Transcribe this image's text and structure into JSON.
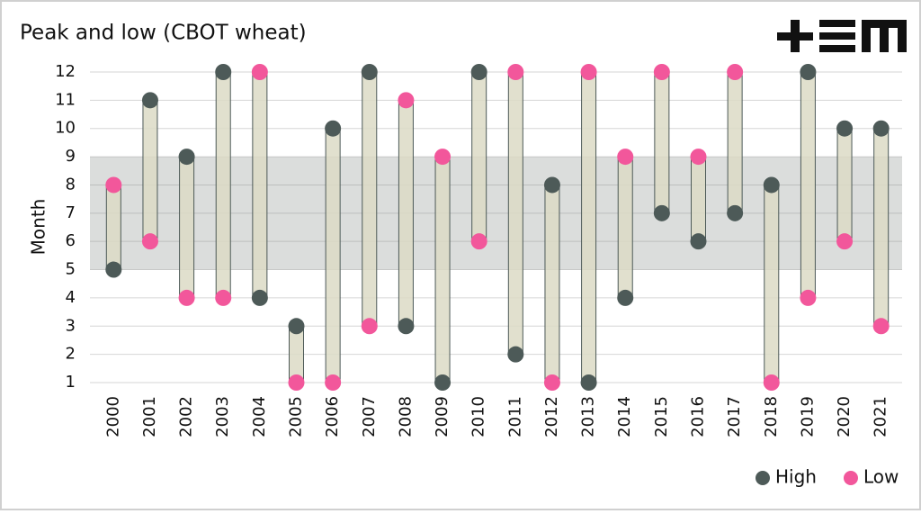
{
  "chart_data": {
    "type": "range-dot",
    "title": "Peak and low (CBOT wheat)",
    "y_label": "Month",
    "categories": [
      "2000",
      "2001",
      "2002",
      "2003",
      "2004",
      "2005",
      "2006",
      "2007",
      "2008",
      "2009",
      "2010",
      "2011",
      "2012",
      "2013",
      "2014",
      "2015",
      "2016",
      "2017",
      "2018",
      "2019",
      "2020",
      "2021"
    ],
    "series": [
      {
        "name": "High",
        "color": "#4d5a58",
        "values": [
          5,
          11,
          9,
          12,
          4,
          3,
          10,
          12,
          3,
          1,
          12,
          2,
          8,
          1,
          4,
          7,
          6,
          7,
          8,
          12,
          10,
          10
        ]
      },
      {
        "name": "Low",
        "color": "#f2579b",
        "values": [
          8,
          6,
          4,
          4,
          12,
          1,
          1,
          3,
          11,
          9,
          6,
          12,
          1,
          12,
          9,
          12,
          9,
          12,
          1,
          4,
          6,
          3
        ]
      }
    ],
    "range_color": "#dcdbc5",
    "highlight_range": [
      5,
      9
    ],
    "ylim": [
      1,
      12
    ],
    "yticks": [
      1,
      2,
      3,
      4,
      5,
      6,
      7,
      8,
      9,
      10,
      11,
      12
    ],
    "grid": true,
    "legend": "bottom-right"
  }
}
